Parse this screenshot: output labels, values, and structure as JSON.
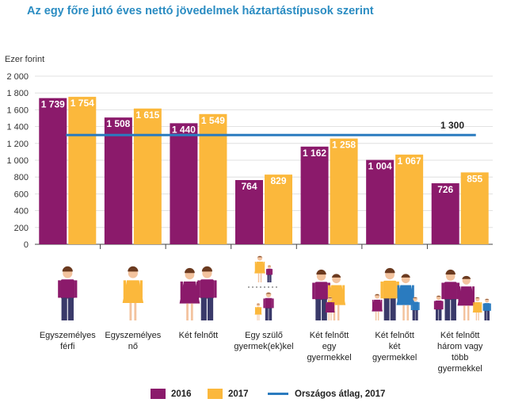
{
  "title": "Az egy főre jutó éves nettó jövedelmek háztartástípusok szerint",
  "chart_data": {
    "type": "bar",
    "title": "Az egy főre jutó éves nettó jövedelmek háztartástípusok szerint",
    "ylabel": "Ezer forint",
    "ylim": [
      0,
      2000
    ],
    "yticks": [
      "0",
      "200",
      "400",
      "600",
      "800",
      "1 000",
      "1 200",
      "1 400",
      "1 600",
      "1 800",
      "2 000"
    ],
    "categories": [
      [
        "Egyszemélyes",
        "férfi"
      ],
      [
        "Egyszemélyes",
        "nő"
      ],
      [
        "Két felnőtt"
      ],
      [
        "Egy szülő",
        "gyermek(ek)kel"
      ],
      [
        "Két felnőtt",
        "egy",
        "gyermekkel"
      ],
      [
        "Két felnőtt",
        "két",
        "gyermekkel"
      ],
      [
        "Két felnőtt",
        "három vagy",
        "több",
        "gyermekkel"
      ]
    ],
    "series": [
      {
        "name": "2016",
        "color": "#8b1a6b",
        "values": [
          1739,
          1508,
          1440,
          764,
          1162,
          1004,
          726
        ],
        "labels": [
          "1 739",
          "1 508",
          "1 440",
          "764",
          "1 162",
          "1 004",
          "726"
        ]
      },
      {
        "name": "2017",
        "color": "#fbb83c",
        "values": [
          1754,
          1615,
          1549,
          829,
          1258,
          1067,
          855
        ],
        "labels": [
          "1 754",
          "1 615",
          "1 549",
          "829",
          "1 258",
          "1 067",
          "855"
        ]
      }
    ],
    "reference_line": {
      "name": "Országos átlag, 2017",
      "value": 1300,
      "label": "1 300",
      "color": "#2a7bbf"
    },
    "legend": [
      "2016",
      "2017",
      "Országos átlag, 2017"
    ]
  },
  "icons": [
    "man-icon",
    "woman-icon",
    "couple-icon",
    "single-parent-icon",
    "family-one-child-icon",
    "family-two-children-icon",
    "family-three-children-icon"
  ],
  "colors": {
    "c2016": "#8b1a6b",
    "c2017": "#fbb83c",
    "avg": "#2a7bbf",
    "title": "#2a8cc2",
    "skin": "#f3c39e",
    "hair": "#6b3a1f"
  }
}
